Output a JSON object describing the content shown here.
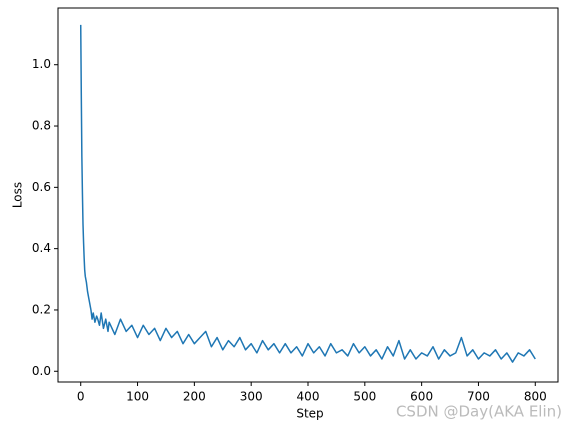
{
  "chart_data": {
    "type": "line",
    "xlabel": "Step",
    "ylabel": "Loss",
    "watermark": "CSDN @Day(AKA Elin)",
    "xlim": [
      -40,
      840
    ],
    "ylim": [
      -0.035,
      1.185
    ],
    "xticks": [
      0,
      100,
      200,
      300,
      400,
      500,
      600,
      700,
      800
    ],
    "yticks": [
      {
        "value": 0,
        "label": "0.0"
      },
      0.2,
      0.4,
      0.6,
      0.8,
      {
        "value": 1,
        "label": "1.0"
      }
    ],
    "series": [
      {
        "color": "#1f77b4",
        "x": [
          0,
          1,
          2,
          3,
          4,
          5,
          6,
          7,
          8,
          10,
          12,
          14,
          16,
          18,
          20,
          22,
          25,
          28,
          30,
          33,
          36,
          40,
          44,
          48,
          50,
          60,
          70,
          80,
          90,
          100,
          110,
          120,
          130,
          140,
          150,
          160,
          170,
          180,
          190,
          200,
          210,
          220,
          230,
          240,
          250,
          260,
          270,
          280,
          290,
          300,
          310,
          320,
          330,
          340,
          350,
          360,
          370,
          380,
          390,
          400,
          410,
          420,
          430,
          440,
          450,
          460,
          470,
          480,
          490,
          500,
          510,
          520,
          530,
          540,
          550,
          560,
          570,
          580,
          590,
          600,
          610,
          620,
          630,
          640,
          650,
          660,
          670,
          680,
          690,
          700,
          710,
          720,
          730,
          740,
          750,
          760,
          770,
          780,
          790,
          800
        ],
        "values": [
          1.13,
          0.9,
          0.7,
          0.58,
          0.48,
          0.42,
          0.37,
          0.33,
          0.31,
          0.29,
          0.26,
          0.24,
          0.22,
          0.2,
          0.17,
          0.19,
          0.16,
          0.18,
          0.17,
          0.15,
          0.19,
          0.14,
          0.17,
          0.13,
          0.16,
          0.12,
          0.17,
          0.13,
          0.15,
          0.11,
          0.15,
          0.12,
          0.14,
          0.1,
          0.14,
          0.11,
          0.13,
          0.09,
          0.12,
          0.09,
          0.11,
          0.13,
          0.08,
          0.11,
          0.07,
          0.1,
          0.08,
          0.11,
          0.07,
          0.09,
          0.06,
          0.1,
          0.07,
          0.09,
          0.06,
          0.09,
          0.06,
          0.08,
          0.05,
          0.09,
          0.06,
          0.08,
          0.05,
          0.09,
          0.06,
          0.07,
          0.05,
          0.09,
          0.06,
          0.08,
          0.05,
          0.07,
          0.04,
          0.08,
          0.05,
          0.1,
          0.04,
          0.07,
          0.04,
          0.06,
          0.05,
          0.08,
          0.04,
          0.07,
          0.05,
          0.06,
          0.11,
          0.05,
          0.07,
          0.04,
          0.06,
          0.05,
          0.07,
          0.04,
          0.06,
          0.03,
          0.06,
          0.05,
          0.07,
          0.04
        ]
      }
    ]
  }
}
